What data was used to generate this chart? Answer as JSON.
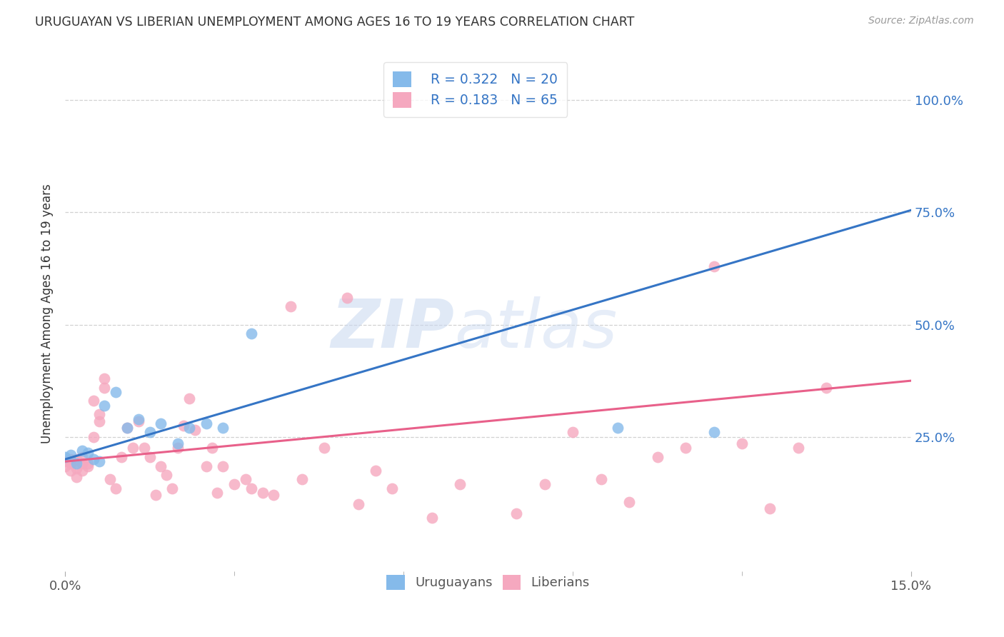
{
  "title": "URUGUAYAN VS LIBERIAN UNEMPLOYMENT AMONG AGES 16 TO 19 YEARS CORRELATION CHART",
  "source": "Source: ZipAtlas.com",
  "ylabel": "Unemployment Among Ages 16 to 19 years",
  "xlim": [
    0.0,
    0.15
  ],
  "ylim": [
    -0.05,
    1.1
  ],
  "xtick_positions": [
    0.0,
    0.15
  ],
  "xtick_labels": [
    "0.0%",
    "15.0%"
  ],
  "ytick_positions": [
    0.0,
    0.25,
    0.5,
    0.75,
    1.0
  ],
  "ytick_labels": [
    "",
    "25.0%",
    "50.0%",
    "75.0%",
    "100.0%"
  ],
  "uruguayan_r": 0.322,
  "uruguayan_n": 20,
  "liberian_r": 0.183,
  "liberian_n": 65,
  "uruguayan_color": "#85baea",
  "liberian_color": "#f5a8bf",
  "uruguayan_line_color": "#3575c5",
  "liberian_line_color": "#e8608a",
  "uruguayan_line": [
    [
      0.0,
      0.2
    ],
    [
      0.15,
      0.755
    ]
  ],
  "liberian_line": [
    [
      0.0,
      0.195
    ],
    [
      0.15,
      0.375
    ]
  ],
  "uruguayan_x": [
    0.0,
    0.001,
    0.002,
    0.003,
    0.004,
    0.005,
    0.006,
    0.007,
    0.009,
    0.011,
    0.013,
    0.015,
    0.017,
    0.02,
    0.022,
    0.025,
    0.028,
    0.033,
    0.098,
    0.115
  ],
  "uruguayan_y": [
    0.205,
    0.21,
    0.19,
    0.22,
    0.215,
    0.2,
    0.195,
    0.32,
    0.35,
    0.27,
    0.29,
    0.26,
    0.28,
    0.235,
    0.27,
    0.28,
    0.27,
    0.48,
    0.27,
    0.26
  ],
  "liberian_x": [
    0.0,
    0.0,
    0.001,
    0.001,
    0.001,
    0.002,
    0.002,
    0.002,
    0.003,
    0.003,
    0.003,
    0.004,
    0.004,
    0.005,
    0.005,
    0.006,
    0.006,
    0.007,
    0.007,
    0.008,
    0.009,
    0.01,
    0.011,
    0.012,
    0.013,
    0.014,
    0.015,
    0.016,
    0.017,
    0.018,
    0.019,
    0.02,
    0.021,
    0.022,
    0.023,
    0.025,
    0.026,
    0.027,
    0.028,
    0.03,
    0.032,
    0.033,
    0.035,
    0.037,
    0.04,
    0.042,
    0.046,
    0.05,
    0.052,
    0.055,
    0.058,
    0.065,
    0.07,
    0.08,
    0.085,
    0.09,
    0.095,
    0.1,
    0.105,
    0.11,
    0.115,
    0.12,
    0.125,
    0.13,
    0.135
  ],
  "liberian_y": [
    0.195,
    0.185,
    0.2,
    0.175,
    0.19,
    0.18,
    0.16,
    0.2,
    0.175,
    0.19,
    0.205,
    0.185,
    0.19,
    0.33,
    0.25,
    0.285,
    0.3,
    0.36,
    0.38,
    0.155,
    0.135,
    0.205,
    0.27,
    0.225,
    0.285,
    0.225,
    0.205,
    0.12,
    0.185,
    0.165,
    0.135,
    0.225,
    0.275,
    0.335,
    0.265,
    0.185,
    0.225,
    0.125,
    0.185,
    0.145,
    0.155,
    0.135,
    0.125,
    0.12,
    0.54,
    0.155,
    0.225,
    0.56,
    0.1,
    0.175,
    0.135,
    0.07,
    0.145,
    0.08,
    0.145,
    0.26,
    0.155,
    0.105,
    0.205,
    0.225,
    0.63,
    0.235,
    0.09,
    0.225,
    0.36
  ],
  "watermark_text": "ZIP",
  "watermark_text2": "atlas",
  "background_color": "#ffffff",
  "grid_color": "#cccccc",
  "marker_size": 130
}
